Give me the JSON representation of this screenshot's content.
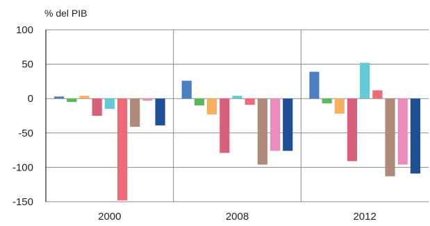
{
  "chart_data": {
    "type": "bar",
    "ylabel": "% del PIB",
    "ylim": [
      -150,
      100
    ],
    "yticks": [
      100,
      50,
      0,
      -50,
      -100,
      -150
    ],
    "ytick_labels": [
      "100",
      "50",
      "0",
      "-50",
      "-100",
      "-150"
    ],
    "categories": [
      "2000",
      "2008",
      "2012"
    ],
    "grid": "y",
    "series": [
      {
        "color": "#4a7fc1",
        "values": [
          3,
          26,
          39
        ]
      },
      {
        "color": "#5cb85c",
        "values": [
          -5,
          -10,
          -7
        ]
      },
      {
        "color": "#f5b060",
        "values": [
          4,
          -23,
          -22
        ]
      },
      {
        "color": "#d9607a",
        "values": [
          -25,
          -79,
          -91
        ]
      },
      {
        "color": "#63c9d4",
        "values": [
          -15,
          4,
          52
        ]
      },
      {
        "color": "#ef6a78",
        "values": [
          -148,
          -9,
          12
        ]
      },
      {
        "color": "#b08a78",
        "values": [
          -41,
          -96,
          -113
        ]
      },
      {
        "color": "#ec8cbc",
        "values": [
          -3,
          -76,
          -96
        ]
      },
      {
        "color": "#1e4f94",
        "values": [
          -39,
          -76,
          -109
        ]
      }
    ]
  }
}
